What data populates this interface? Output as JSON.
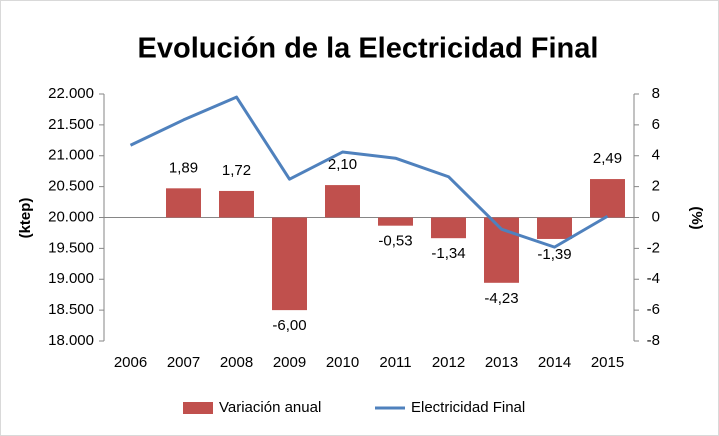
{
  "chart_data": {
    "type": "bar_line",
    "title": "Evolución de la Electricidad Final",
    "ylabel": "(ktep)",
    "y2label": "(%)",
    "categories": [
      "2006",
      "2007",
      "2008",
      "2009",
      "2010",
      "2011",
      "2012",
      "2013",
      "2014",
      "2015"
    ],
    "series": [
      {
        "name": "Variación anual",
        "type": "bar",
        "axis": "y2",
        "color": "#c0504d",
        "values": [
          null,
          1.89,
          1.72,
          -6.0,
          2.1,
          -0.53,
          -1.34,
          -4.23,
          -1.39,
          2.49
        ],
        "value_labels": [
          null,
          "1,89",
          "1,72",
          "-6,00",
          "2,10",
          "-0,53",
          "-1,34",
          "-4,23",
          "-1,39",
          "2,49"
        ]
      },
      {
        "name": "Electricidad Final",
        "type": "line",
        "axis": "y",
        "color": "#4f81bd",
        "values": [
          21170,
          21580,
          21950,
          20620,
          21060,
          20960,
          20660,
          19810,
          19520,
          20020
        ]
      }
    ],
    "ylim": [
      18000,
      22000
    ],
    "yticks": [
      {
        "value": 18000,
        "label": "18.000"
      },
      {
        "value": 18500,
        "label": "18.500"
      },
      {
        "value": 19000,
        "label": "19.000"
      },
      {
        "value": 19500,
        "label": "19.500"
      },
      {
        "value": 20000,
        "label": "20.000"
      },
      {
        "value": 20500,
        "label": "20.500"
      },
      {
        "value": 21000,
        "label": "21.000"
      },
      {
        "value": 21500,
        "label": "21.500"
      },
      {
        "value": 22000,
        "label": "22.000"
      }
    ],
    "y2lim": [
      -8,
      8
    ],
    "y2ticks": [
      -8,
      -6,
      -4,
      -2,
      0,
      2,
      4,
      6,
      8
    ],
    "grid": false,
    "legend": "bottom"
  }
}
